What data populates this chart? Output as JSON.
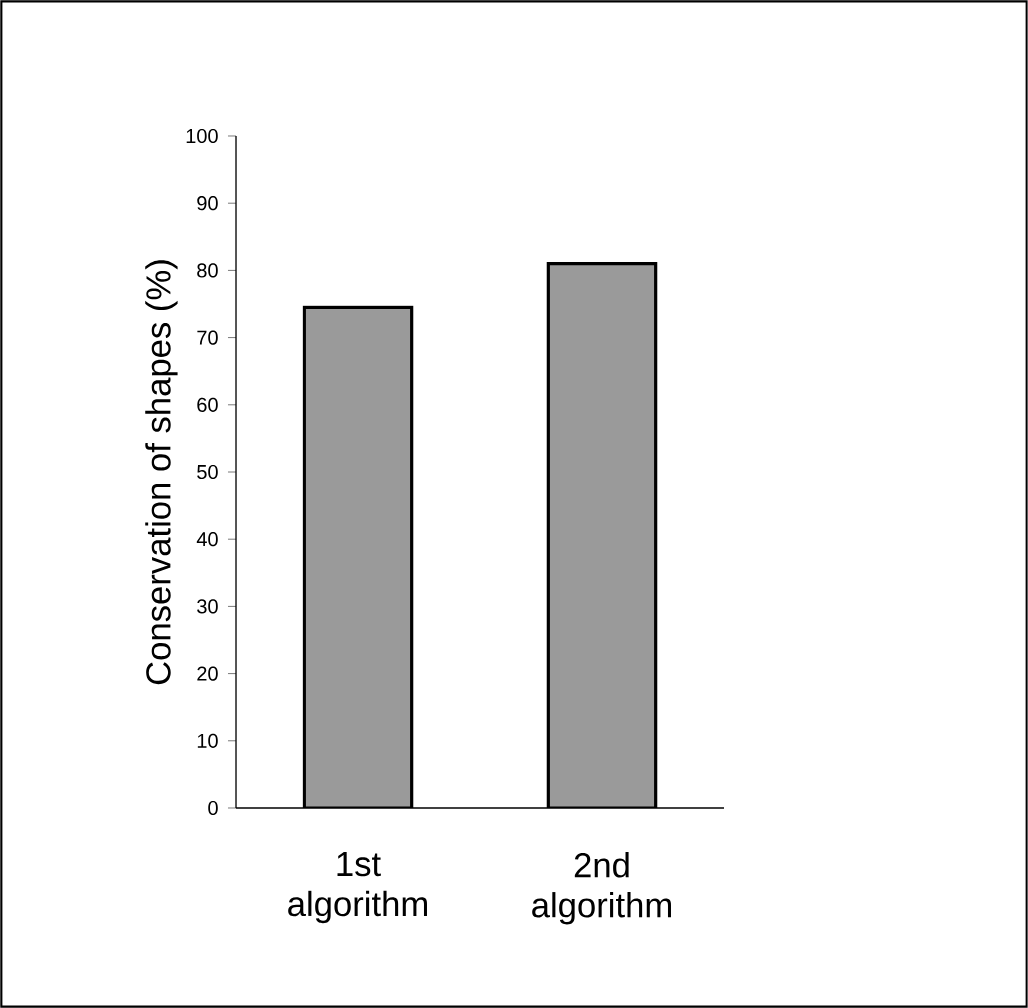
{
  "chart_data": {
    "type": "bar",
    "ylabel": "Conservation of shapes (%)",
    "categories": [
      "1st algorithm",
      "2nd algorithm"
    ],
    "values": [
      74.5,
      81
    ],
    "colors": [
      "#9a9a9a",
      "#9a9a9a"
    ],
    "ylim": [
      0,
      100
    ],
    "yticks": [
      0,
      10,
      20,
      30,
      40,
      50,
      60,
      70,
      80,
      90,
      100
    ],
    "grid": false
  }
}
